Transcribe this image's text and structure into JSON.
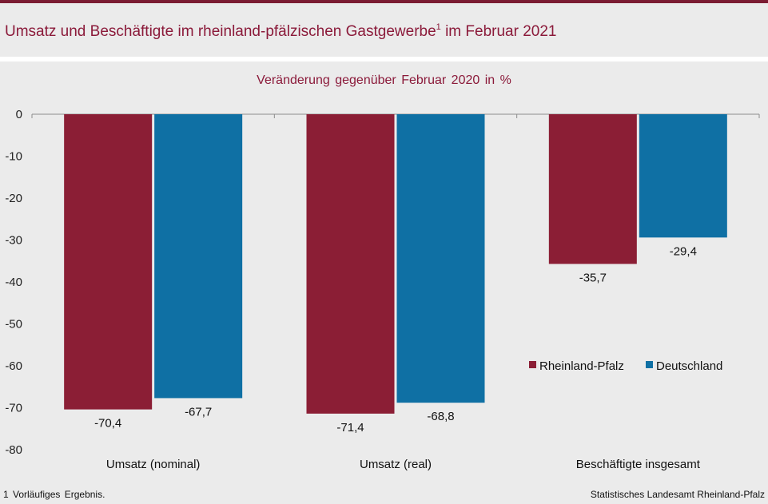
{
  "header": {
    "title": "Umsatz und Beschäftigte im rheinland-pfälzischen Gastgewerbe",
    "title_sup": "1",
    "title_suffix": " im Februar 2021",
    "subtitle": "Veränderung gegenüber Februar 2020 in %"
  },
  "footer": {
    "footnote": "1 Vorläufiges Ergebnis.",
    "source": "Statistisches Landesamt Rheinland-Pfalz"
  },
  "colors": {
    "rheinland_pfalz": "#8b1e35",
    "deutschland": "#0f70a4",
    "accent": "#7b1c33"
  },
  "chart_data": {
    "type": "bar",
    "title": "Umsatz und Beschäftigte im rheinland-pfälzischen Gastgewerbe im Februar 2021",
    "subtitle": "Veränderung gegenüber Februar 2020 in %",
    "categories": [
      "Umsatz (nominal)",
      "Umsatz (real)",
      "Beschäftigte insgesamt"
    ],
    "series": [
      {
        "name": "Rheinland-Pfalz",
        "values": [
          -70.4,
          -71.4,
          -35.7
        ],
        "labels": [
          "-70,4",
          "-71,4",
          "-35,7"
        ],
        "color": "#8b1e35"
      },
      {
        "name": "Deutschland",
        "values": [
          -67.7,
          -68.8,
          -29.4
        ],
        "labels": [
          "-67,7",
          "-68,8",
          "-29,4"
        ],
        "color": "#0f70a4"
      }
    ],
    "yticks": [
      0,
      -10,
      -20,
      -30,
      -40,
      -50,
      -60,
      -70,
      -80
    ],
    "ylim": [
      -80,
      0
    ],
    "xlabel": "",
    "ylabel": "",
    "legend_position": "right",
    "grid": false
  }
}
